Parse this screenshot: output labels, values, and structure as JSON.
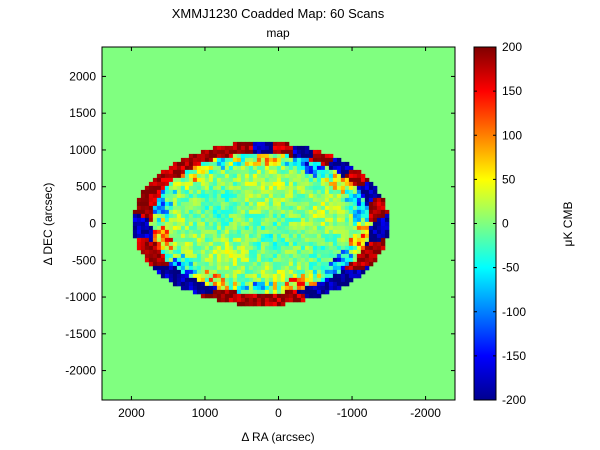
{
  "chart_data": {
    "type": "heatmap",
    "title": "XMMJ1230 Coadded Map: 60 Scans",
    "subtitle": "map",
    "xlabel": "Δ RA (arcsec)",
    "ylabel": "Δ DEC (arcsec)",
    "xlim": [
      2400,
      -2400
    ],
    "ylim": [
      -2400,
      2400
    ],
    "x_ticks": [
      2000,
      1000,
      0,
      -1000,
      -2000
    ],
    "y_ticks": [
      2000,
      1500,
      1000,
      500,
      0,
      -500,
      -1000,
      -1500,
      -2000
    ],
    "colorbar": {
      "label": "μK CMB",
      "range": [
        -200,
        200
      ],
      "ticks": [
        200,
        150,
        100,
        50,
        0,
        -50,
        -100,
        -150,
        -200
      ],
      "colormap": "jet"
    },
    "background_value": 10,
    "coverage_ellipse": {
      "center_ra": 240,
      "center_dec": 0,
      "semi_axis_ra": 1740,
      "semi_axis_dec": 1110
    }
  }
}
